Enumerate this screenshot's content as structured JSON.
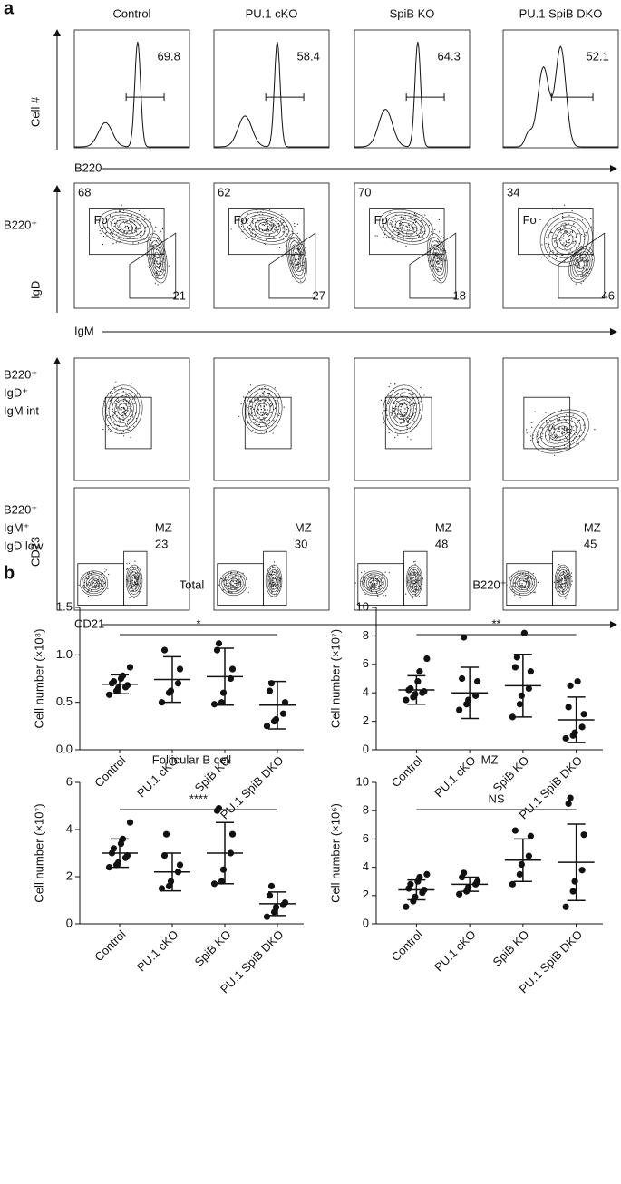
{
  "panel_a": {
    "label": "a",
    "columns": [
      "Control",
      "PU.1 cKO",
      "SpiB KO",
      "PU.1 SpiB DKO"
    ],
    "histogram_row": {
      "y_label": "Cell #",
      "x_label": "B220",
      "gate_percent": [
        69.8,
        58.4,
        64.3,
        52.1
      ]
    },
    "igd_igm_row": {
      "row_label": "B220⁺",
      "y_label": "IgD",
      "x_label": "IgM",
      "gate_name": "Fo",
      "fo_percent": [
        68,
        62,
        70,
        34
      ],
      "lower_percent": [
        21,
        27,
        18,
        46
      ]
    },
    "cd23_rows": {
      "y_label": "CD23",
      "x_label": "CD21",
      "row_labels": [
        [
          "B220⁺",
          "IgD⁺",
          "IgM int"
        ],
        [
          "B220⁺",
          "IgM⁺",
          "IgD low"
        ]
      ],
      "gate_name": "MZ",
      "mz_percent": [
        23,
        30,
        48,
        45
      ]
    }
  },
  "panel_b": {
    "label": "b"
  },
  "chart_data": [
    {
      "type": "dotplot",
      "title": "Total",
      "y_label": "Cell number (×10⁸)",
      "significance": "*",
      "categories": [
        "Control",
        "PU.1 cKO",
        "SpiB KO",
        "PU.1 SpiB DKO"
      ],
      "points": [
        [
          0.58,
          0.62,
          0.65,
          0.66,
          0.68,
          0.7,
          0.72,
          0.75,
          0.78,
          0.87
        ],
        [
          0.5,
          0.6,
          0.62,
          0.7,
          0.85,
          1.05
        ],
        [
          0.48,
          0.5,
          0.6,
          0.75,
          0.85,
          1.05,
          1.12
        ],
        [
          0.25,
          0.3,
          0.32,
          0.38,
          0.5,
          0.62,
          0.7
        ]
      ],
      "means": [
        0.69,
        0.74,
        0.77,
        0.47
      ],
      "sd": [
        0.1,
        0.24,
        0.3,
        0.25
      ],
      "ylim": [
        0,
        1.5
      ],
      "yticks": [
        {
          "value": 0,
          "label": "0.0"
        },
        {
          "value": 0.5,
          "label": "0.5"
        },
        {
          "value": 1,
          "label": "1.0"
        },
        {
          "value": 1.5,
          "label": "1.5"
        }
      ],
      "color": "#111111"
    },
    {
      "type": "dotplot",
      "title": "B220⁺",
      "y_label": "Cell number (×10⁷)",
      "significance": "**",
      "categories": [
        "Control",
        "PU.1 cKO",
        "SpiB KO",
        "PU.1 SpiB DKO"
      ],
      "points": [
        [
          3.5,
          3.7,
          3.9,
          4.0,
          4.1,
          4.2,
          4.3,
          4.8,
          5.5,
          6.4
        ],
        [
          2.8,
          3.2,
          3.5,
          3.8,
          4.8,
          5.0,
          7.9
        ],
        [
          2.3,
          3.2,
          3.8,
          4.3,
          5.5,
          5.8,
          6.5,
          8.2
        ],
        [
          0.8,
          1.0,
          1.2,
          1.6,
          2.5,
          3.0,
          4.5,
          4.8
        ]
      ],
      "means": [
        4.2,
        4.0,
        4.5,
        2.1
      ],
      "sd": [
        1.0,
        1.8,
        2.2,
        1.6
      ],
      "ylim": [
        0,
        10
      ],
      "yticks": [
        0,
        2,
        4,
        6,
        8,
        10
      ],
      "color": "#111111"
    },
    {
      "type": "dotplot",
      "title": "Follicular B cell",
      "y_label": "Cell number (×10⁷)",
      "significance": "****",
      "categories": [
        "Control",
        "PU.1 cKO",
        "SpiB KO",
        "PU.1 SpiB DKO"
      ],
      "points": [
        [
          2.4,
          2.5,
          2.6,
          2.8,
          2.9,
          3.0,
          3.2,
          3.4,
          3.6,
          4.3
        ],
        [
          1.5,
          1.6,
          1.8,
          2.2,
          2.5,
          2.9,
          3.8
        ],
        [
          1.7,
          1.8,
          2.3,
          3.0,
          3.8,
          4.8,
          4.9
        ],
        [
          0.3,
          0.5,
          0.7,
          0.8,
          0.9,
          1.2,
          1.6
        ]
      ],
      "means": [
        3.0,
        2.2,
        3.0,
        0.85
      ],
      "sd": [
        0.6,
        0.8,
        1.3,
        0.5
      ],
      "ylim": [
        0,
        6
      ],
      "yticks": [
        0,
        2,
        4,
        6
      ],
      "color": "#111111"
    },
    {
      "type": "dotplot",
      "title": "MZ",
      "y_label": "Cell number (×10⁶)",
      "significance": "NS",
      "categories": [
        "Control",
        "PU.1 cKO",
        "SpiB KO",
        "PU.1 SpiB DKO"
      ],
      "points": [
        [
          1.2,
          1.6,
          1.9,
          2.2,
          2.4,
          2.5,
          2.8,
          3.0,
          3.3,
          3.5
        ],
        [
          2.1,
          2.3,
          2.6,
          2.8,
          3.0,
          3.3,
          3.6
        ],
        [
          2.8,
          3.5,
          4.2,
          4.8,
          6.2,
          6.6
        ],
        [
          1.2,
          2.3,
          3.0,
          3.8,
          6.3,
          8.5,
          8.9
        ]
      ],
      "means": [
        2.4,
        2.8,
        4.5,
        4.35
      ],
      "sd": [
        0.7,
        0.5,
        1.5,
        2.7
      ],
      "ylim": [
        0,
        10
      ],
      "yticks": [
        0,
        2,
        4,
        6,
        8,
        10
      ],
      "color": "#111111"
    }
  ]
}
